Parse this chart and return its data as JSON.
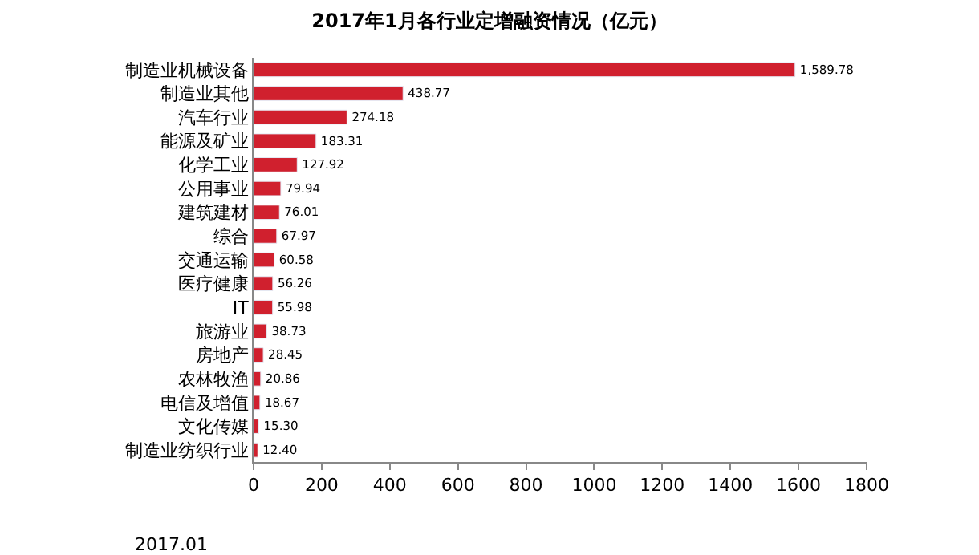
{
  "chart_data": {
    "type": "bar",
    "orientation": "horizontal",
    "title": "2017年1月各行业定增融资情况（亿元）",
    "categories": [
      "制造业机械设备",
      "制造业其他",
      "汽车行业",
      "能源及矿业",
      "化学工业",
      "公用事业",
      "建筑建材",
      "综合",
      "交通运输",
      "医疗健康",
      "IT",
      "旅游业",
      "房地产",
      "农林牧渔",
      "电信及增值",
      "文化传媒",
      "制造业纺织行业"
    ],
    "values": [
      1589.78,
      438.77,
      274.18,
      183.31,
      127.92,
      79.94,
      76.01,
      67.97,
      60.58,
      56.26,
      55.98,
      38.73,
      28.45,
      20.86,
      18.67,
      15.3,
      12.4
    ],
    "value_labels": [
      "1,589.78",
      "438.77",
      "274.18",
      "183.31",
      "127.92",
      "79.94",
      "76.01",
      "67.97",
      "60.58",
      "56.26",
      "55.98",
      "38.73",
      "28.45",
      "20.86",
      "18.67",
      "15.30",
      "12.40"
    ],
    "color": "#d0202e",
    "xlim": [
      0,
      1800
    ],
    "xticks": [
      0,
      200,
      400,
      600,
      800,
      1000,
      1200,
      1400,
      1600,
      1800
    ],
    "annotations": [
      "2017.01"
    ]
  }
}
